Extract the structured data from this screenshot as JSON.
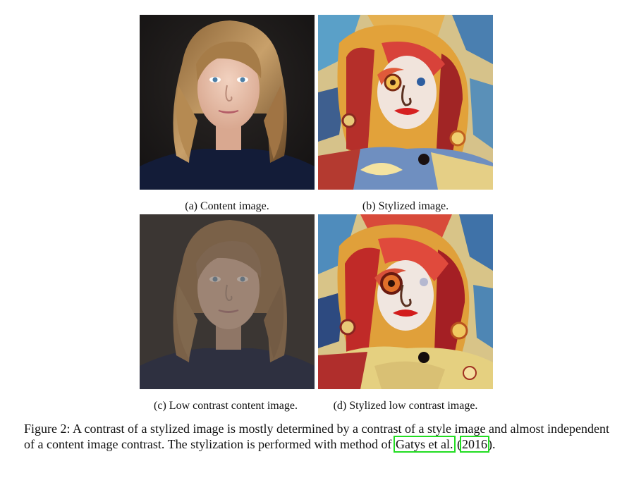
{
  "figure": {
    "panels": [
      {
        "label": "(a) Content image.",
        "kind": "photo",
        "contrast": "normal"
      },
      {
        "label": "(b) Stylized image.",
        "kind": "stylized",
        "contrast": "normal"
      },
      {
        "label": "(c) Low contrast content image.",
        "kind": "photo",
        "contrast": "low"
      },
      {
        "label": "(d) Stylized low contrast image.",
        "kind": "stylized",
        "contrast": "low"
      }
    ],
    "caption": {
      "prefix": "Figure 2: A contrast of a stylized image is mostly determined by a contrast of a style image and almost independent of a content image contrast. The stylization is performed with method of ",
      "cite_author": "Gatys et al.",
      "cite_open": " (",
      "cite_year": "2016",
      "suffix": ")."
    },
    "colors": {
      "citation_box": "#22dd22"
    }
  }
}
